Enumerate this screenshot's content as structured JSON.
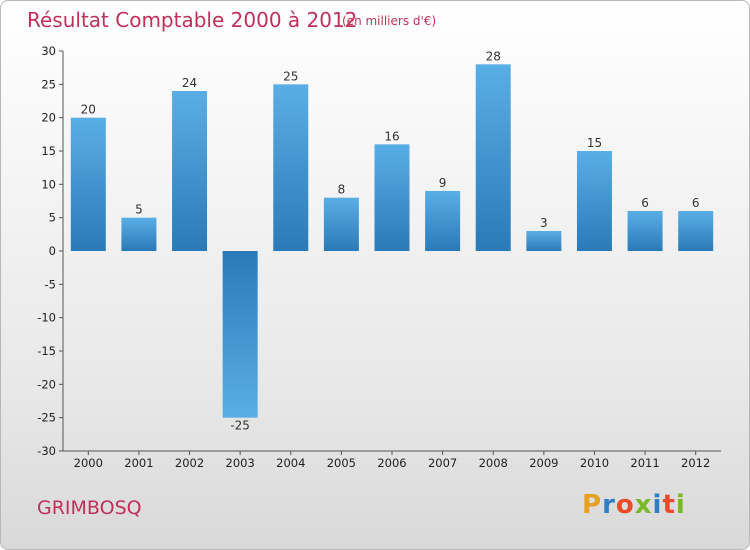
{
  "header": {
    "title": "Résultat Comptable 2000 à 2012",
    "subtitle": "(en milliers d'€)"
  },
  "footer": {
    "commune": "GRIMBOSQ",
    "logo_text": "Proxiti"
  },
  "colors": {
    "title": "#c0305a",
    "bar_light": "#5aaee6",
    "bar_dark": "#2a7ab8",
    "logo": [
      "#e8a020",
      "#2f7fc4",
      "#e84a2a",
      "#7ab82a",
      "#2f7fc4",
      "#e84a2a",
      "#7ab82a"
    ]
  },
  "chart_data": {
    "type": "bar",
    "title": "Résultat Comptable 2000 à 2012",
    "subtitle": "(en milliers d'€)",
    "categories": [
      "2000",
      "2001",
      "2002",
      "2003",
      "2004",
      "2005",
      "2006",
      "2007",
      "2008",
      "2009",
      "2010",
      "2011",
      "2012"
    ],
    "values": [
      20,
      5,
      24,
      -25,
      25,
      8,
      16,
      9,
      28,
      3,
      15,
      6,
      6
    ],
    "ylim": [
      -30,
      30
    ],
    "yticks": [
      30,
      25,
      20,
      15,
      10,
      5,
      0,
      -5,
      -10,
      -15,
      -20,
      -25,
      -30
    ],
    "xlabel": "",
    "ylabel": "",
    "grid": false,
    "legend": "none"
  }
}
